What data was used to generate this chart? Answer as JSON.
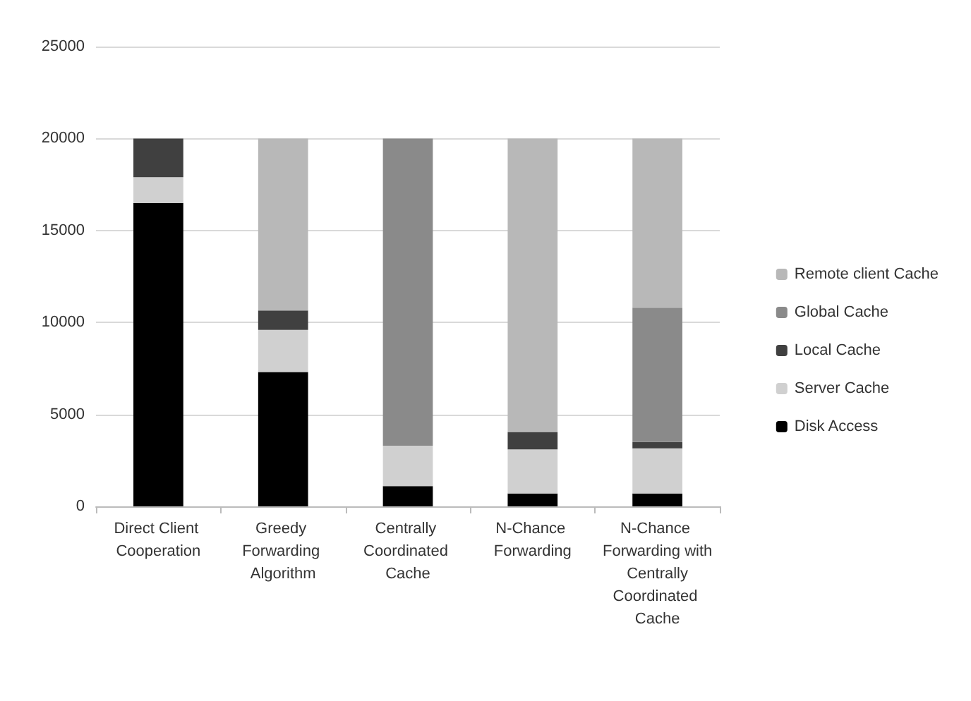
{
  "chart_data": {
    "type": "bar",
    "stacked": true,
    "categories": [
      "Direct Client Cooperation",
      "Greedy Forwarding Algorithm",
      "Centrally Coordinated Cache",
      "N-Chance Forwarding",
      "N-Chance Forwarding with Centrally Coordinated Cache"
    ],
    "series": [
      {
        "name": "Disk Access",
        "color": "#000000",
        "values": [
          16500,
          7300,
          1100,
          700,
          700
        ]
      },
      {
        "name": "Server Cache",
        "color": "#d0d0d0",
        "values": [
          1400,
          2300,
          2200,
          2400,
          2450
        ]
      },
      {
        "name": "Local Cache",
        "color": "#404040",
        "values": [
          2100,
          1050,
          0,
          950,
          350
        ]
      },
      {
        "name": "Global Cache",
        "color": "#8a8a8a",
        "values": [
          0,
          0,
          16700,
          0,
          7300
        ]
      },
      {
        "name": "Remote client Cache",
        "color": "#b8b8b8",
        "values": [
          0,
          9350,
          0,
          15950,
          9200
        ]
      }
    ],
    "ylim": [
      0,
      25000
    ],
    "yticks": [
      0,
      5000,
      10000,
      15000,
      20000,
      25000
    ],
    "grid": "y",
    "legend": "right"
  }
}
